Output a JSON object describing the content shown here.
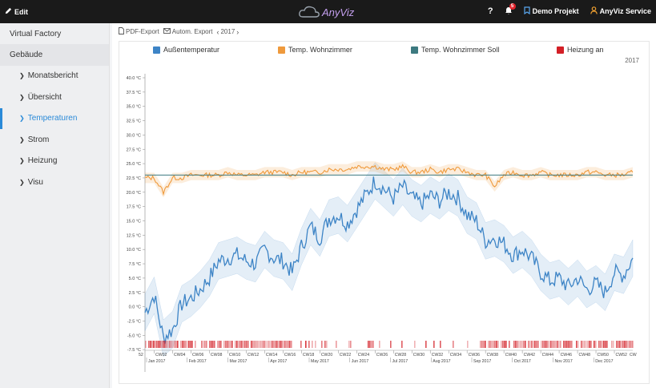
{
  "topbar": {
    "edit_label": "Edit",
    "logo_text": "AnyViz",
    "help_label": "?",
    "notification_count": "5",
    "project_label": "Demo Projekt",
    "service_label": "AnyViz Service"
  },
  "sidebar": {
    "items": [
      {
        "label": "Virtual Factory"
      },
      {
        "label": "Gebäude"
      },
      {
        "label": "Monatsbericht"
      },
      {
        "label": "Übersicht"
      },
      {
        "label": "Temperaturen"
      },
      {
        "label": "Strom"
      },
      {
        "label": "Heizung"
      },
      {
        "label": "Visu"
      }
    ]
  },
  "toolbar": {
    "pdf_export": "PDF-Export",
    "auto_export": "Autom. Export",
    "year": "2017"
  },
  "colors": {
    "outside": "#3d84c6",
    "living": "#ef9a3c",
    "setpoint": "#3d7a80",
    "heating": "#d31f26",
    "accent": "#2a8ad8"
  },
  "chart_data": {
    "type": "line",
    "title": "",
    "year_label": "2017",
    "ylabel": "",
    "ylim": [
      -10,
      40
    ],
    "yticks": [
      "40.0 °C",
      "37.5 °C",
      "35.0 °C",
      "32.5 °C",
      "30.0 °C",
      "27.5 °C",
      "25.0 °C",
      "22.5 °C",
      "20.0 °C",
      "17.5 °C",
      "15.0 °C",
      "12.5 °C",
      "10.0 °C",
      "7.5 °C",
      "5.0 °C",
      "2.5 °C",
      "0.0 °C",
      "-2.5 °C",
      "-5.0 °C",
      "-7.5 °C"
    ],
    "ytick_values": [
      40,
      37.5,
      35,
      32.5,
      30,
      27.5,
      25,
      22.5,
      20,
      17.5,
      15,
      12.5,
      10,
      7.5,
      5,
      2.5,
      0,
      -2.5,
      -5,
      -7.5
    ],
    "week_labels": [
      "CW02",
      "CW04",
      "CW06",
      "CW08",
      "CW10",
      "CW12",
      "CW14",
      "CW16",
      "CW18",
      "CW20",
      "CW22",
      "CW24",
      "CW26",
      "CW28",
      "CW30",
      "CW32",
      "CW34",
      "CW36",
      "CW38",
      "CW40",
      "CW42",
      "CW44",
      "CW46",
      "CW48",
      "CW50",
      "CW52"
    ],
    "month_labels": [
      "Jan 2017",
      "Feb 2017",
      "Mar 2017",
      "Apr 2017",
      "May 2017",
      "Jun 2017",
      "Jul 2017",
      "Aug 2017",
      "Sep 2017",
      "Oct 2017",
      "Nov 2017",
      "Dec 2017"
    ],
    "edge_left_label": "52",
    "edge_right_label": "CW",
    "series": [
      {
        "name": "Außentemperatur",
        "key": "outside",
        "x_weeks": [
          0,
          1,
          2,
          3,
          4,
          5,
          6,
          7,
          8,
          9,
          10,
          11,
          12,
          13,
          14,
          15,
          16,
          17,
          18,
          19,
          20,
          21,
          22,
          23,
          24,
          25,
          26,
          27,
          28,
          29,
          30,
          31,
          32,
          33,
          34,
          35,
          36,
          37,
          38,
          39,
          40,
          41,
          42,
          43,
          44,
          45,
          46,
          47,
          48,
          49,
          50,
          51,
          52,
          53
        ],
        "values": [
          -1.0,
          2.0,
          -5.5,
          -4.0,
          0.5,
          1.5,
          3.0,
          5.0,
          8.0,
          8.5,
          9.0,
          8.0,
          7.5,
          10.0,
          8.5,
          8.0,
          6.0,
          10.5,
          14.0,
          12.0,
          15.5,
          16.0,
          14.5,
          17.0,
          19.5,
          22.0,
          20.5,
          19.0,
          21.0,
          19.0,
          18.0,
          19.5,
          18.5,
          20.0,
          19.0,
          16.0,
          15.0,
          11.5,
          12.0,
          11.0,
          9.0,
          10.0,
          8.5,
          6.0,
          4.5,
          5.0,
          3.5,
          5.0,
          3.0,
          4.0,
          2.5,
          6.0,
          5.5,
          8.5
        ]
      },
      {
        "name": "Temp. Wohnzimmer",
        "key": "living",
        "x_weeks": [
          0,
          1,
          2,
          3,
          4,
          5,
          6,
          7,
          8,
          9,
          10,
          11,
          12,
          13,
          14,
          15,
          16,
          17,
          18,
          19,
          20,
          21,
          22,
          23,
          24,
          25,
          26,
          27,
          28,
          29,
          30,
          31,
          32,
          33,
          34,
          35,
          36,
          37,
          38,
          39,
          40,
          41,
          42,
          43,
          44,
          45,
          46,
          47,
          48,
          49,
          50,
          51,
          52,
          53
        ],
        "values": [
          22.5,
          22.5,
          20.0,
          22.5,
          22.5,
          23.0,
          23.0,
          23.0,
          23.0,
          23.5,
          23.0,
          23.0,
          23.0,
          23.5,
          23.5,
          23.5,
          23.0,
          23.5,
          23.5,
          23.5,
          24.0,
          24.0,
          24.0,
          24.5,
          24.5,
          24.5,
          24.0,
          24.0,
          24.5,
          23.5,
          23.5,
          24.0,
          23.5,
          24.0,
          24.0,
          23.5,
          23.0,
          23.0,
          21.0,
          23.0,
          23.5,
          23.0,
          23.0,
          23.5,
          23.0,
          23.0,
          23.0,
          23.0,
          23.5,
          23.5,
          23.0,
          23.0,
          23.0,
          23.5
        ]
      },
      {
        "name": "Temp. Wohnzimmer Soll",
        "key": "setpoint",
        "x_weeks": [
          0,
          53
        ],
        "values": [
          23.0,
          23.0
        ]
      },
      {
        "name": "Heizung an",
        "key": "heating",
        "x_weeks": [],
        "values": []
      }
    ]
  }
}
